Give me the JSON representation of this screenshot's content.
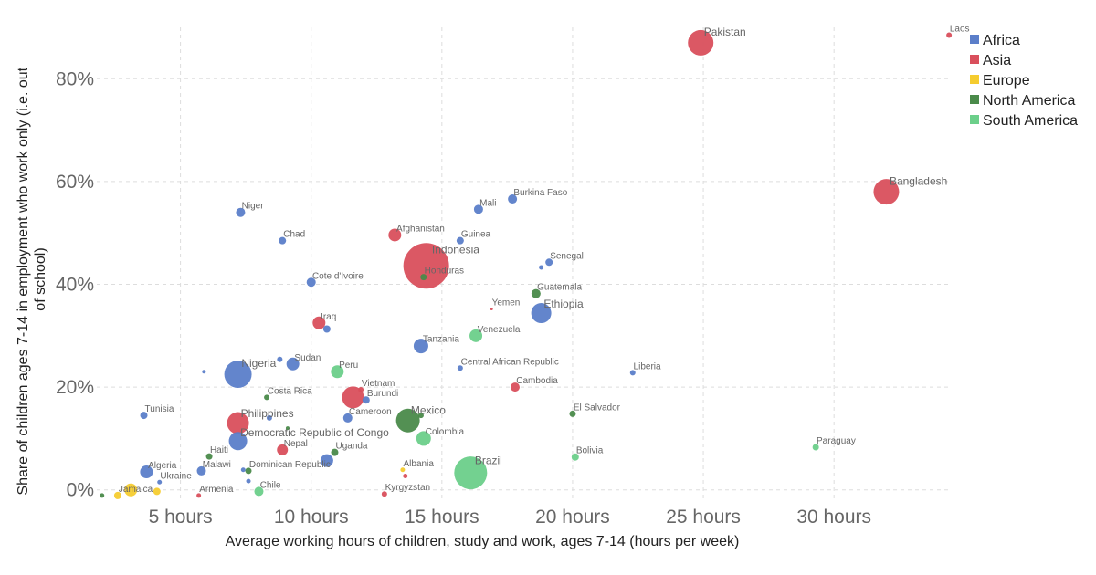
{
  "chart_data": {
    "type": "scatter",
    "xlabel": "Average working hours of children, study and work, ages 7-14 (hours per week)",
    "ylabel": "Share of children ages 7-14 in employment who work only (i.e. out of school)",
    "xlim": [
      1.8,
      34.5
    ],
    "ylim": [
      -0.02,
      0.9
    ],
    "x_ticks": [
      5,
      10,
      15,
      20,
      25,
      30
    ],
    "x_tick_labels": [
      "5 hours",
      "10 hours",
      "15 hours",
      "20 hours",
      "25 hours",
      "30 hours"
    ],
    "y_ticks": [
      0,
      0.2,
      0.4,
      0.6,
      0.8
    ],
    "y_tick_labels": [
      "0%",
      "20%",
      "40%",
      "60%",
      "80%"
    ],
    "grid": true,
    "legend_position": "top-right",
    "series": [
      {
        "name": "Africa",
        "color": "#5b7ec9"
      },
      {
        "name": "Asia",
        "color": "#d94f5c"
      },
      {
        "name": "Europe",
        "color": "#f5cc2f"
      },
      {
        "name": "North America",
        "color": "#4a8a4a"
      },
      {
        "name": "South America",
        "color": "#6ccf8a"
      }
    ],
    "points": [
      {
        "label": "Laos",
        "x": 34.4,
        "y": 0.885,
        "r": 3,
        "region": "Asia"
      },
      {
        "label": "Pakistan",
        "x": 24.9,
        "y": 0.87,
        "r": 14,
        "region": "Asia"
      },
      {
        "label": "Bangladesh",
        "x": 32.0,
        "y": 0.58,
        "r": 14,
        "region": "Asia"
      },
      {
        "label": "Burkina Faso",
        "x": 17.7,
        "y": 0.566,
        "r": 5,
        "region": "Africa"
      },
      {
        "label": "Mali",
        "x": 16.4,
        "y": 0.546,
        "r": 5,
        "region": "Africa"
      },
      {
        "label": "Niger",
        "x": 7.3,
        "y": 0.54,
        "r": 5,
        "region": "Africa"
      },
      {
        "label": "Afghanistan",
        "x": 13.2,
        "y": 0.496,
        "r": 7,
        "region": "Asia"
      },
      {
        "label": "Guinea",
        "x": 15.7,
        "y": 0.485,
        "r": 4,
        "region": "Africa"
      },
      {
        "label": "Chad",
        "x": 8.9,
        "y": 0.485,
        "r": 4,
        "region": "Africa"
      },
      {
        "label": "Indonesia",
        "x": 14.4,
        "y": 0.436,
        "r": 25,
        "region": "Asia"
      },
      {
        "label": "Senegal",
        "x": 19.1,
        "y": 0.443,
        "r": 4,
        "region": "Africa"
      },
      {
        "label": "",
        "x": 18.8,
        "y": 0.433,
        "r": 2.5,
        "region": "Africa"
      },
      {
        "label": "Honduras",
        "x": 14.3,
        "y": 0.414,
        "r": 3.5,
        "region": "North America"
      },
      {
        "label": "Cote d'Ivoire",
        "x": 10.0,
        "y": 0.404,
        "r": 5,
        "region": "Africa"
      },
      {
        "label": "Guatemala",
        "x": 18.6,
        "y": 0.382,
        "r": 5,
        "region": "North America"
      },
      {
        "label": "Yemen",
        "x": 16.9,
        "y": 0.352,
        "r": 1.5,
        "region": "Asia"
      },
      {
        "label": "Ethiopia",
        "x": 18.8,
        "y": 0.344,
        "r": 11,
        "region": "Africa"
      },
      {
        "label": "Iraq",
        "x": 10.3,
        "y": 0.325,
        "r": 7,
        "region": "Asia"
      },
      {
        "label": "",
        "x": 10.6,
        "y": 0.313,
        "r": 4,
        "region": "Africa"
      },
      {
        "label": "Venezuela",
        "x": 16.3,
        "y": 0.3,
        "r": 7,
        "region": "South America"
      },
      {
        "label": "Tanzania",
        "x": 14.2,
        "y": 0.28,
        "r": 8,
        "region": "Africa"
      },
      {
        "label": "",
        "x": 8.8,
        "y": 0.254,
        "r": 3,
        "region": "Africa"
      },
      {
        "label": "Sudan",
        "x": 9.3,
        "y": 0.245,
        "r": 7,
        "region": "Africa"
      },
      {
        "label": "Central African Republic",
        "x": 15.7,
        "y": 0.237,
        "r": 3,
        "region": "Africa"
      },
      {
        "label": "Peru",
        "x": 11.0,
        "y": 0.23,
        "r": 7,
        "region": "South America"
      },
      {
        "label": "",
        "x": 5.9,
        "y": 0.23,
        "r": 2,
        "region": "Africa"
      },
      {
        "label": "Liberia",
        "x": 22.3,
        "y": 0.228,
        "r": 3,
        "region": "Africa"
      },
      {
        "label": "Nigeria",
        "x": 7.2,
        "y": 0.225,
        "r": 15,
        "region": "Africa"
      },
      {
        "label": "Cambodia",
        "x": 17.8,
        "y": 0.2,
        "r": 5,
        "region": "Asia"
      },
      {
        "label": "Vietnam",
        "x": 11.9,
        "y": 0.195,
        "r": 3,
        "region": "Asia"
      },
      {
        "label": "",
        "x": 11.6,
        "y": 0.18,
        "r": 12,
        "region": "Asia"
      },
      {
        "label": "Costa Rica",
        "x": 8.3,
        "y": 0.18,
        "r": 3,
        "region": "North America"
      },
      {
        "label": "Burundi",
        "x": 12.1,
        "y": 0.175,
        "r": 4,
        "region": "Africa"
      },
      {
        "label": "El Salvador",
        "x": 20.0,
        "y": 0.148,
        "r": 3.5,
        "region": "North America"
      },
      {
        "label": "Tunisia",
        "x": 3.6,
        "y": 0.145,
        "r": 4,
        "region": "Africa"
      },
      {
        "label": "",
        "x": 14.2,
        "y": 0.145,
        "r": 3,
        "region": "North America"
      },
      {
        "label": "Mexico",
        "x": 13.7,
        "y": 0.135,
        "r": 13,
        "region": "North America"
      },
      {
        "label": "Philippines",
        "x": 7.2,
        "y": 0.13,
        "r": 12,
        "region": "Asia"
      },
      {
        "label": "",
        "x": 8.4,
        "y": 0.14,
        "r": 3,
        "region": "Africa"
      },
      {
        "label": "Cameroon",
        "x": 11.4,
        "y": 0.14,
        "r": 5,
        "region": "Africa"
      },
      {
        "label": "Democratic Republic of Congo",
        "x": 7.2,
        "y": 0.095,
        "r": 10,
        "region": "Africa"
      },
      {
        "label": "",
        "x": 9.1,
        "y": 0.12,
        "r": 2,
        "region": "North America"
      },
      {
        "label": "Colombia",
        "x": 14.3,
        "y": 0.1,
        "r": 8,
        "region": "South America"
      },
      {
        "label": "Nepal",
        "x": 8.9,
        "y": 0.078,
        "r": 6,
        "region": "Asia"
      },
      {
        "label": "Haiti",
        "x": 6.1,
        "y": 0.065,
        "r": 3.5,
        "region": "North America"
      },
      {
        "label": "Uganda",
        "x": 10.9,
        "y": 0.073,
        "r": 4,
        "region": "North America"
      },
      {
        "label": "Bolivia",
        "x": 20.1,
        "y": 0.064,
        "r": 4,
        "region": "South America"
      },
      {
        "label": "Paraguay",
        "x": 29.3,
        "y": 0.083,
        "r": 3.5,
        "region": "South America"
      },
      {
        "label": "",
        "x": 10.6,
        "y": 0.057,
        "r": 7,
        "region": "Africa"
      },
      {
        "label": "Algeria",
        "x": 3.7,
        "y": 0.035,
        "r": 7,
        "region": "Africa"
      },
      {
        "label": "Malawi",
        "x": 5.8,
        "y": 0.037,
        "r": 5,
        "region": "Africa"
      },
      {
        "label": "Dominican Republic",
        "x": 7.6,
        "y": 0.037,
        "r": 3.5,
        "region": "North America"
      },
      {
        "label": "",
        "x": 7.4,
        "y": 0.039,
        "r": 2.5,
        "region": "Africa"
      },
      {
        "label": "Brazil",
        "x": 16.1,
        "y": 0.033,
        "r": 18,
        "region": "South America"
      },
      {
        "label": "Albania",
        "x": 13.5,
        "y": 0.039,
        "r": 2.5,
        "region": "Europe"
      },
      {
        "label": "",
        "x": 13.6,
        "y": 0.027,
        "r": 2.5,
        "region": "Asia"
      },
      {
        "label": "Ukraine",
        "x": 4.2,
        "y": 0.015,
        "r": 2.5,
        "region": "Africa"
      },
      {
        "label": "Chile",
        "x": 8.0,
        "y": -0.003,
        "r": 5,
        "region": "South America"
      },
      {
        "label": "",
        "x": 7.6,
        "y": 0.017,
        "r": 2.5,
        "region": "Africa"
      },
      {
        "label": "",
        "x": 3.1,
        "y": 0.0,
        "r": 7,
        "region": "Europe"
      },
      {
        "label": "",
        "x": 4.1,
        "y": -0.003,
        "r": 4,
        "region": "Europe"
      },
      {
        "label": "Jamaica",
        "x": 2.6,
        "y": -0.011,
        "r": 4,
        "region": "Europe"
      },
      {
        "label": "",
        "x": 2.0,
        "y": -0.011,
        "r": 2.5,
        "region": "North America"
      },
      {
        "label": "Armenia",
        "x": 5.7,
        "y": -0.011,
        "r": 2.5,
        "region": "Asia"
      },
      {
        "label": "Kyrgyzstan",
        "x": 12.8,
        "y": -0.008,
        "r": 3,
        "region": "Asia"
      }
    ]
  }
}
